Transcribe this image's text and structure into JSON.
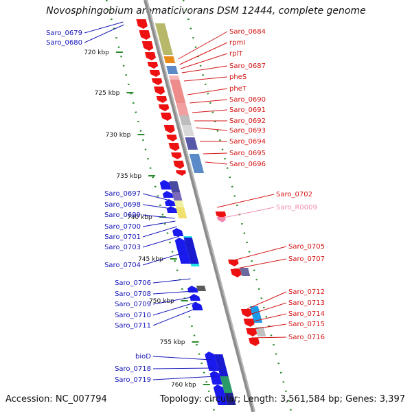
{
  "title": "Novosphingobium aromaticivorans DSM 12444, complete genome",
  "accession": "Accession: NC_007794",
  "summary": "Topology: circular; Length: 3,561,584 bp; Genes: 3,397",
  "colors": {
    "forward_gene": "#1a1aee",
    "reverse_gene": "#ee1111",
    "rna_gene": "#f08ab2",
    "backbone": "#8c8c8c",
    "tick": "#2a8a2a",
    "label_left": "#1515b8",
    "label_right": "#d41414"
  },
  "kbp_ticks": [
    "720 kbp",
    "725 kbp",
    "730 kbp",
    "735 kbp",
    "740 kbp",
    "745 kbp",
    "750 kbp",
    "755 kbp",
    "760 kbp"
  ],
  "left_labels": [
    "Saro_0679",
    "Saro_0680",
    "Saro_0697",
    "Saro_0698",
    "Saro_0699",
    "Saro_0700",
    "Saro_0701",
    "Saro_0703",
    "Saro_0704",
    "Saro_0706",
    "Saro_0708",
    "Saro_0709",
    "Saro_0710",
    "Saro_0711",
    "bioD",
    "Saro_0718",
    "Saro_0719"
  ],
  "right_labels": [
    "Saro_0684",
    "rpmI",
    "rplT",
    "Saro_0687",
    "pheS",
    "pheT",
    "Saro_0690",
    "Saro_0691",
    "Saro_0692",
    "Saro_0693",
    "Saro_0694",
    "Saro_0695",
    "Saro_0696",
    "Saro_0702",
    "Saro_R0009",
    "Saro_0705",
    "Saro_0707",
    "Saro_0712",
    "Saro_0713",
    "Saro_0714",
    "Saro_0715",
    "Saro_0716"
  ]
}
